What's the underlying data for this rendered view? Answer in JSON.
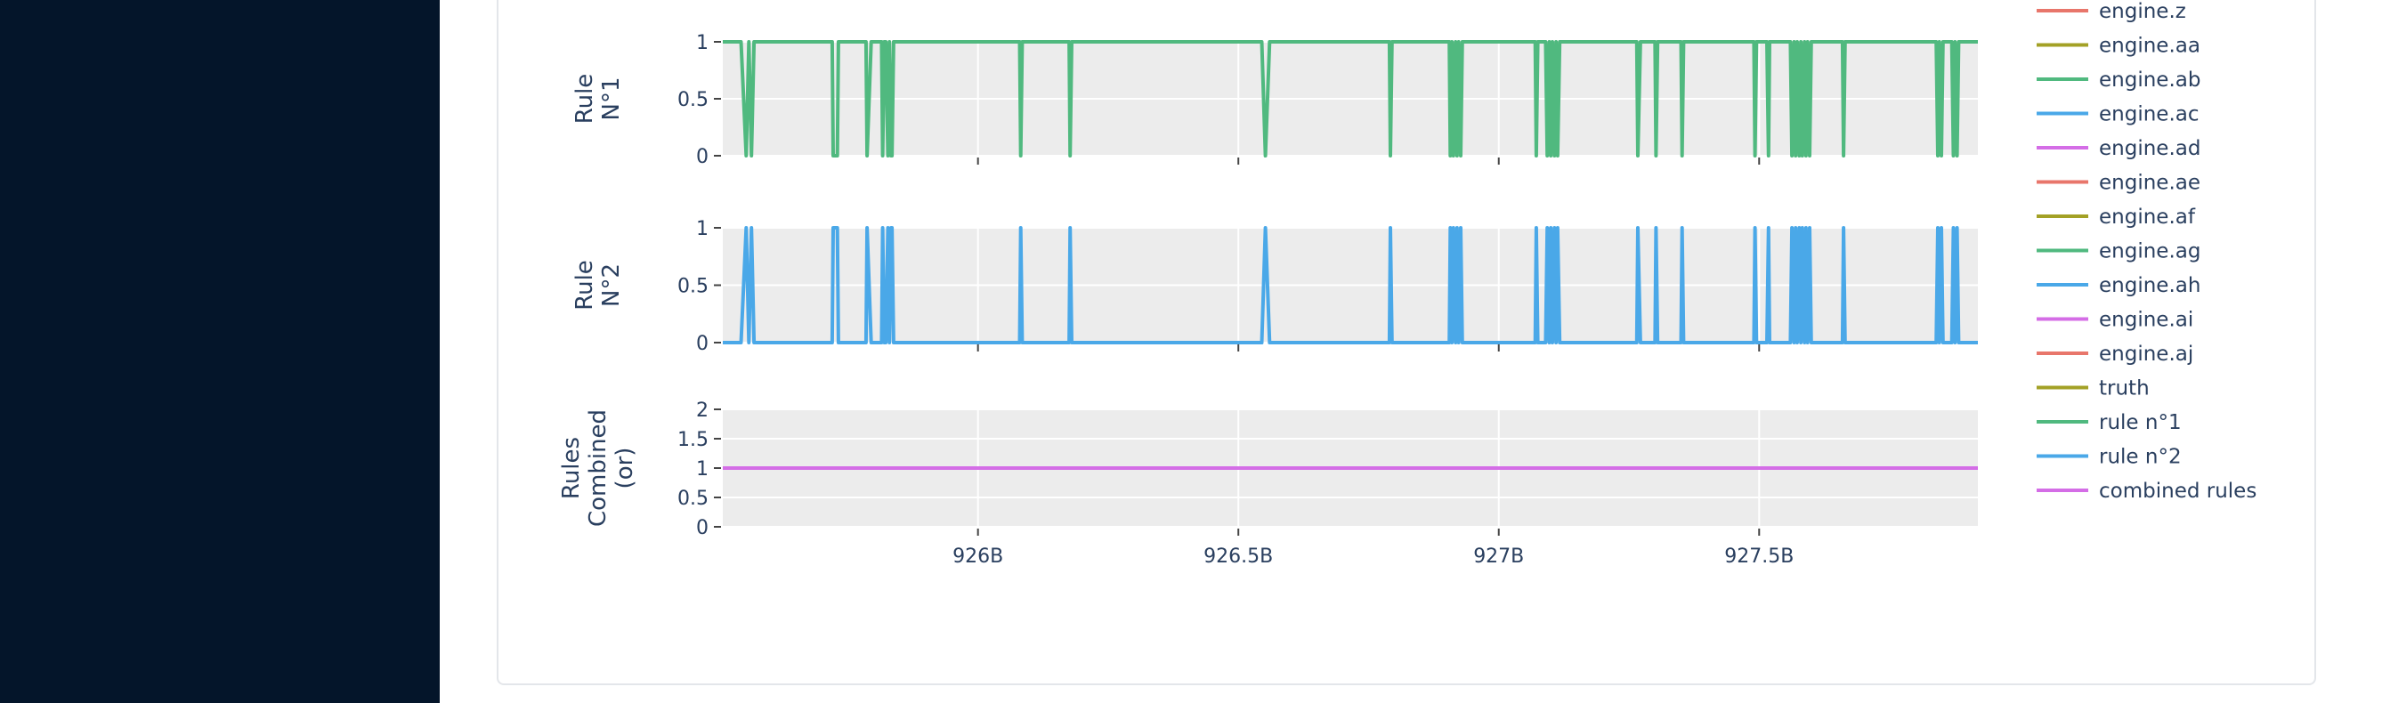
{
  "colors": {
    "sidebar": "#04152a",
    "plot_bg": "#ececec",
    "grid": "#ffffff",
    "rule1": "#50b97f",
    "rule2": "#4aa8e8",
    "combined": "#d46de6",
    "red": "#e8766b",
    "olive": "#a3a126",
    "text": "#2a3f5f"
  },
  "legend": [
    {
      "label": "engine.z",
      "color": "#e8766b"
    },
    {
      "label": "engine.aa",
      "color": "#a3a126"
    },
    {
      "label": "engine.ab",
      "color": "#50b97f"
    },
    {
      "label": "engine.ac",
      "color": "#4aa8e8"
    },
    {
      "label": "engine.ad",
      "color": "#d46de6"
    },
    {
      "label": "engine.ae",
      "color": "#e8766b"
    },
    {
      "label": "engine.af",
      "color": "#a3a126"
    },
    {
      "label": "engine.ag",
      "color": "#50b97f"
    },
    {
      "label": "engine.ah",
      "color": "#4aa8e8"
    },
    {
      "label": "engine.ai",
      "color": "#d46de6"
    },
    {
      "label": "engine.aj",
      "color": "#e8766b"
    },
    {
      "label": "truth",
      "color": "#a3a126"
    },
    {
      "label": "rule n°1",
      "color": "#50b97f"
    },
    {
      "label": "rule n°2",
      "color": "#4aa8e8"
    },
    {
      "label": "combined rules",
      "color": "#d46de6"
    }
  ],
  "chart_data": {
    "type": "line",
    "x_range": [
      925.51,
      927.92
    ],
    "x_ticks": [
      926,
      926.5,
      927,
      927.5
    ],
    "x_tick_labels": [
      "926B",
      "926.5B",
      "927B",
      "927.5B"
    ],
    "x_unit_suffix": "B",
    "grid": true,
    "legend_position": "right",
    "subplots": [
      {
        "id": "rule1",
        "ylabel": [
          "Rule",
          "N°1"
        ],
        "ylim": [
          0,
          1
        ],
        "y_ticks": [
          0,
          0.5,
          1
        ],
        "y_tick_labels": [
          "0",
          "0.5",
          "1"
        ],
        "series": {
          "name": "rule n°1",
          "color": "#50b97f",
          "x": [
            925.51,
            925.545,
            925.555,
            925.56,
            925.565,
            925.57,
            925.575,
            925.72,
            925.722,
            925.73,
            925.732,
            925.785,
            925.787,
            925.795,
            925.815,
            925.817,
            925.82,
            925.823,
            925.827,
            925.83,
            925.833,
            925.835,
            925.838,
            926.08,
            926.082,
            926.085,
            926.175,
            926.177,
            926.18,
            926.545,
            926.552,
            926.56,
            926.79,
            926.792,
            926.795,
            926.905,
            926.907,
            926.91,
            926.913,
            926.917,
            926.92,
            926.923,
            926.927,
            926.93,
            927.07,
            927.072,
            927.075,
            927.09,
            927.093,
            927.097,
            927.1,
            927.103,
            927.107,
            927.11,
            927.113,
            927.117,
            927.12,
            927.265,
            927.267,
            927.272,
            927.275,
            927.3,
            927.302,
            927.305,
            927.35,
            927.352,
            927.355,
            927.49,
            927.492,
            927.495,
            927.515,
            927.518,
            927.52,
            927.56,
            927.563,
            927.567,
            927.57,
            927.573,
            927.577,
            927.58,
            927.583,
            927.587,
            927.59,
            927.593,
            927.597,
            927.6,
            927.66,
            927.662,
            927.665,
            927.84,
            927.843,
            927.846,
            927.85,
            927.853,
            927.856,
            927.87,
            927.873,
            927.876,
            927.88,
            927.883,
            927.886,
            927.92
          ],
          "y": [
            1,
            1,
            0,
            1,
            0,
            1,
            1,
            1,
            0,
            0,
            1,
            1,
            0,
            1,
            1,
            0,
            1,
            1,
            0,
            1,
            0,
            0,
            1,
            1,
            0,
            1,
            1,
            0,
            1,
            1,
            0,
            1,
            1,
            0,
            1,
            1,
            0,
            1,
            0,
            1,
            0,
            1,
            0,
            1,
            1,
            0,
            1,
            1,
            0,
            1,
            0,
            1,
            0,
            1,
            0,
            1,
            1,
            1,
            0,
            1,
            1,
            1,
            0,
            1,
            1,
            0,
            1,
            1,
            0,
            1,
            1,
            0,
            1,
            1,
            0,
            1,
            0,
            1,
            0,
            1,
            0,
            1,
            0,
            1,
            0,
            1,
            1,
            0,
            1,
            1,
            0,
            1,
            0,
            1,
            1,
            1,
            0,
            1,
            0,
            1,
            1,
            1
          ]
        }
      },
      {
        "id": "rule2",
        "ylabel": [
          "Rule",
          "N°2"
        ],
        "ylim": [
          0,
          1
        ],
        "y_ticks": [
          0,
          0.5,
          1
        ],
        "y_tick_labels": [
          "0",
          "0.5",
          "1"
        ],
        "series": {
          "name": "rule n°2",
          "color": "#4aa8e8",
          "x": [
            925.51,
            925.545,
            925.555,
            925.56,
            925.565,
            925.57,
            925.575,
            925.72,
            925.722,
            925.73,
            925.732,
            925.785,
            925.787,
            925.795,
            925.815,
            925.817,
            925.82,
            925.823,
            925.827,
            925.83,
            925.833,
            925.835,
            925.838,
            926.08,
            926.082,
            926.085,
            926.175,
            926.177,
            926.18,
            926.545,
            926.552,
            926.56,
            926.79,
            926.792,
            926.795,
            926.905,
            926.907,
            926.91,
            926.913,
            926.917,
            926.92,
            926.923,
            926.927,
            926.93,
            927.07,
            927.072,
            927.075,
            927.09,
            927.093,
            927.097,
            927.1,
            927.103,
            927.107,
            927.11,
            927.113,
            927.117,
            927.12,
            927.265,
            927.267,
            927.272,
            927.275,
            927.3,
            927.302,
            927.305,
            927.35,
            927.352,
            927.355,
            927.49,
            927.492,
            927.495,
            927.515,
            927.518,
            927.52,
            927.56,
            927.563,
            927.567,
            927.57,
            927.573,
            927.577,
            927.58,
            927.583,
            927.587,
            927.59,
            927.593,
            927.597,
            927.6,
            927.66,
            927.662,
            927.665,
            927.84,
            927.843,
            927.846,
            927.85,
            927.853,
            927.856,
            927.87,
            927.873,
            927.876,
            927.88,
            927.883,
            927.886,
            927.92
          ],
          "y": [
            0,
            0,
            1,
            0,
            1,
            0,
            0,
            0,
            1,
            1,
            0,
            0,
            1,
            0,
            0,
            1,
            0,
            0,
            1,
            0,
            1,
            1,
            0,
            0,
            1,
            0,
            0,
            1,
            0,
            0,
            1,
            0,
            0,
            1,
            0,
            0,
            1,
            0,
            1,
            0,
            1,
            0,
            1,
            0,
            0,
            1,
            0,
            0,
            1,
            0,
            1,
            0,
            1,
            0,
            1,
            0,
            0,
            0,
            1,
            0,
            0,
            0,
            1,
            0,
            0,
            1,
            0,
            0,
            1,
            0,
            0,
            1,
            0,
            0,
            1,
            0,
            1,
            0,
            1,
            0,
            1,
            0,
            1,
            0,
            1,
            0,
            0,
            1,
            0,
            0,
            1,
            0,
            1,
            0,
            0,
            0,
            1,
            0,
            1,
            0,
            0,
            0
          ]
        }
      },
      {
        "id": "combined",
        "ylabel": [
          "Rules",
          "Combined",
          "(or)"
        ],
        "ylim": [
          0,
          2
        ],
        "y_ticks": [
          0,
          0.5,
          1,
          1.5,
          2
        ],
        "y_tick_labels": [
          "0",
          "0.5",
          "1",
          "1.5",
          "2"
        ],
        "series": {
          "name": "combined rules",
          "color": "#d46de6",
          "x": [
            925.51,
            927.92
          ],
          "y": [
            1,
            1
          ]
        }
      }
    ]
  }
}
